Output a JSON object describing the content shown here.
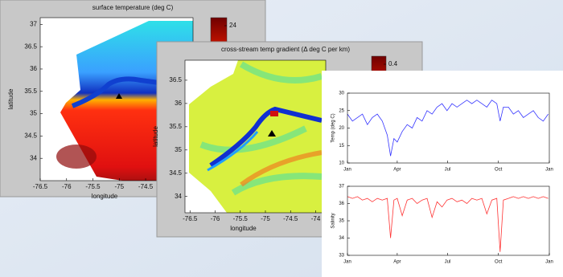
{
  "chart_data": [
    {
      "type": "heatmap",
      "title": "surface temperature (deg C)",
      "xlabel": "longitude",
      "ylabel": "latitude",
      "xlim": [
        -76.5,
        -73.6
      ],
      "xticks": [
        -76.5,
        -76,
        -75.5,
        -75,
        -74.5
      ],
      "ylim": [
        33.5,
        37.15
      ],
      "yticks": [
        34,
        34.5,
        35,
        35.5,
        36,
        36.5,
        37
      ],
      "cticks": [
        24
      ]
    },
    {
      "type": "heatmap",
      "title": "cross-stream temp gradient (Δ deg C per km)",
      "xlabel": "longitude",
      "ylabel": "latitude",
      "xlim": [
        -76.6,
        -73.8
      ],
      "xticks": [
        -76.5,
        -76,
        -75.5,
        -75,
        -74.5,
        -74
      ],
      "ylim": [
        33.65,
        36.93
      ],
      "yticks": [
        34,
        34.5,
        35,
        35.5,
        36,
        36.5
      ],
      "cticks": [
        0.4
      ]
    },
    {
      "type": "line",
      "ylabel": "Temp (deg C)",
      "color": "#3333ff",
      "x": [
        0,
        9,
        18,
        27,
        36,
        45,
        54,
        63,
        72,
        78,
        84,
        90,
        99,
        108,
        117,
        126,
        135,
        144,
        153,
        162,
        171,
        180,
        189,
        198,
        207,
        216,
        225,
        234,
        243,
        252,
        261,
        270,
        276,
        282,
        291,
        300,
        309,
        318,
        327,
        336,
        345,
        354,
        363
      ],
      "values": [
        24,
        22,
        23,
        24,
        21,
        23,
        24,
        22,
        18,
        12,
        17,
        16,
        19,
        21,
        20,
        23,
        22,
        25,
        24,
        26,
        27,
        25,
        27,
        26,
        27,
        28,
        27,
        28,
        27,
        26,
        28,
        27,
        22,
        26,
        26,
        24,
        25,
        23,
        24,
        25,
        23,
        22,
        24
      ],
      "xlim": [
        0,
        365
      ],
      "xticks": [
        {
          "value": 0,
          "label": "Jan"
        },
        {
          "value": 90,
          "label": "Apr"
        },
        {
          "value": 181,
          "label": "Jul"
        },
        {
          "value": 273,
          "label": "Oct"
        },
        {
          "value": 365,
          "label": "Jan"
        }
      ],
      "ylim": [
        10,
        30
      ],
      "yticks": [
        10,
        15,
        20,
        25,
        30
      ]
    },
    {
      "type": "line",
      "ylabel": "Salinity",
      "color": "#ff3333",
      "x": [
        0,
        9,
        18,
        27,
        36,
        45,
        54,
        63,
        72,
        78,
        84,
        90,
        99,
        108,
        117,
        126,
        135,
        144,
        153,
        162,
        171,
        180,
        189,
        198,
        207,
        216,
        225,
        234,
        243,
        252,
        261,
        270,
        276,
        282,
        291,
        300,
        309,
        318,
        327,
        336,
        345,
        354,
        363
      ],
      "values": [
        36.4,
        36.3,
        36.4,
        36.2,
        36.3,
        36.1,
        36.3,
        36.2,
        36.3,
        34.0,
        36.2,
        36.3,
        35.3,
        36.2,
        36.3,
        36.0,
        36.2,
        36.3,
        35.2,
        36.1,
        35.8,
        36.2,
        36.3,
        36.1,
        36.2,
        36.0,
        36.3,
        36.2,
        36.3,
        35.4,
        36.2,
        36.3,
        33.2,
        36.2,
        36.3,
        36.4,
        36.3,
        36.4,
        36.3,
        36.4,
        36.3,
        36.4,
        36.3
      ],
      "xlim": [
        0,
        365
      ],
      "xticks": [
        {
          "value": 0,
          "label": "Jan"
        },
        {
          "value": 90,
          "label": "Apr"
        },
        {
          "value": 181,
          "label": "Jul"
        },
        {
          "value": 273,
          "label": "Oct"
        },
        {
          "value": 365,
          "label": "Jan"
        }
      ],
      "ylim": [
        33,
        37
      ],
      "yticks": [
        33,
        34,
        35,
        36,
        37
      ]
    }
  ]
}
